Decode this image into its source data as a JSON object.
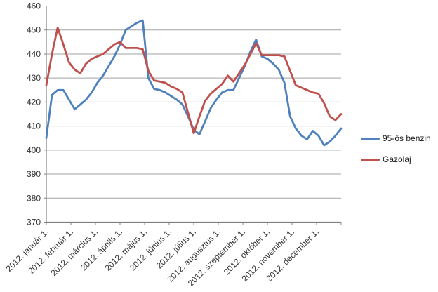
{
  "chart_data": {
    "type": "line",
    "title": "",
    "ylim": [
      370,
      460
    ],
    "y_ticks": [
      370,
      380,
      390,
      400,
      410,
      420,
      430,
      440,
      450,
      460
    ],
    "grid": true,
    "legend_position": "right",
    "x_tick_labels": [
      "2012. január 1.",
      "2012. február 1.",
      "2012. március 1.",
      "2012. április 1.",
      "2012. május 1.",
      "2012. június 1.",
      "2012. július 1.",
      "2012. augusztus 1.",
      "2012. szeptember 1.",
      "2012. október 1.",
      "2012. november 1.",
      "2012. december 1."
    ],
    "x_unit": "weekly",
    "series": [
      {
        "name": "95-ös benzin",
        "color": "#4F81BD",
        "values": [
          405,
          423,
          425,
          425,
          421,
          417,
          419,
          421,
          424,
          428,
          431,
          435,
          439,
          444,
          450,
          451.5,
          453,
          454,
          430,
          425.5,
          425,
          424,
          422.5,
          421,
          419,
          414,
          408.5,
          406.5,
          412,
          417.5,
          421,
          424,
          425,
          425,
          430,
          435,
          441,
          446,
          439,
          438,
          436,
          433.5,
          428,
          414,
          409,
          406,
          404.5,
          408,
          406,
          402,
          403.5,
          406,
          409
        ]
      },
      {
        "name": "Gázolaj",
        "color": "#C0504D",
        "values": [
          427,
          440,
          451,
          444,
          436.5,
          433.5,
          432,
          436,
          438,
          439,
          440,
          442,
          444,
          445,
          442.5,
          442.5,
          442.5,
          442,
          433,
          429,
          428.5,
          428,
          426.5,
          425.5,
          424,
          415.5,
          407,
          414,
          420.5,
          423.5,
          425.5,
          427.5,
          431,
          428.5,
          432,
          435.5,
          440,
          444.5,
          439.5,
          439.5,
          439.5,
          439.5,
          439,
          433,
          427,
          426,
          425,
          424,
          423.5,
          419.5,
          414,
          412.5,
          415
        ]
      }
    ]
  },
  "colors": {
    "background": "#FFFFFF",
    "grid": "#A3A3A3",
    "axis": "#808080",
    "label": "#333333"
  }
}
